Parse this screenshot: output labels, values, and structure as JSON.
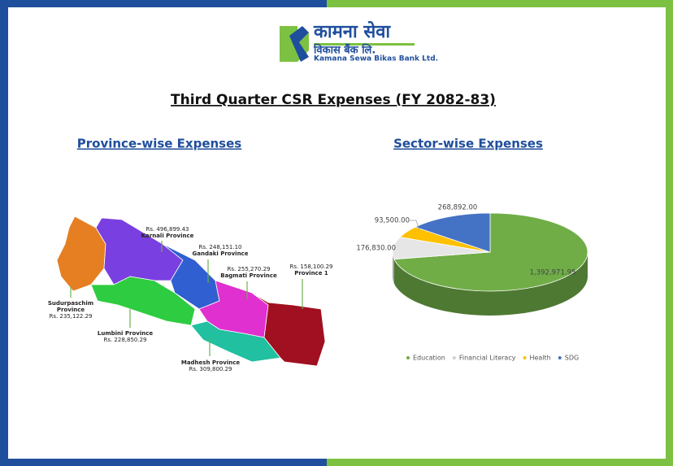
{
  "header": {
    "brand_nepali": "कामना सेवा",
    "brand_nepali_sub": "विकास बैंक लि.",
    "brand_english": "Kamana Sewa Bikas Bank Ltd.",
    "title": "Third Quarter CSR Expenses (FY 2082-83)"
  },
  "map": {
    "heading": "Province-wise Expenses",
    "provinces": [
      {
        "name": [
          "Karnali Province"
        ],
        "amount": "Rs. 496,899.43"
      },
      {
        "name": [
          "Gandaki Province"
        ],
        "amount": "Rs. 248,151.10"
      },
      {
        "name": [
          "Bagmati Province"
        ],
        "amount": "Rs. 255,270.29"
      },
      {
        "name": [
          "Province 1"
        ],
        "amount": "Rs. 158,100.29"
      },
      {
        "name": [
          "Sudurpaschim",
          "Province"
        ],
        "amount": "Rs. 235,122.29"
      },
      {
        "name": [
          "Lumbini Province"
        ],
        "amount": "Rs. 228,850.29"
      },
      {
        "name": [
          "Madhesh Province"
        ],
        "amount": "Rs. 309,800.29"
      }
    ]
  },
  "chart_data": {
    "type": "pie",
    "title": "Sector-wise Expenses",
    "categories": [
      "Education",
      "Financial Literacy",
      "Health",
      "SDG"
    ],
    "values": [
      1392971.95,
      176830,
      93500,
      268892
    ],
    "value_labels": [
      "1,392,971.95",
      "176,830.00",
      "93,500.00",
      "268,892.00"
    ],
    "colors": [
      "#70ad47",
      "#e7e6e6",
      "#ffc000",
      "#4472c4"
    ],
    "legend": "bottom"
  }
}
